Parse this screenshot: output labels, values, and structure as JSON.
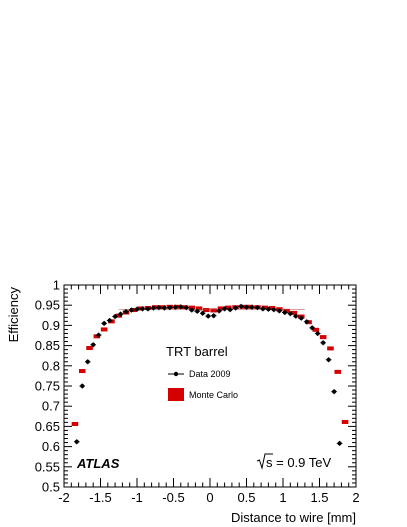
{
  "chart_data": {
    "type": "scatter",
    "xlabel": "Distance to wire  [mm]",
    "ylabel": "Efficiency",
    "xlim": [
      -2,
      2
    ],
    "ylim": [
      0.5,
      1.0
    ],
    "x_ticks": [
      "-2",
      "-1.5",
      "-1",
      "-0.5",
      "0",
      "0.5",
      "1",
      "1.5",
      "2"
    ],
    "y_ticks": [
      "0.5",
      "0.55",
      "0.6",
      "0.65",
      "0.7",
      "0.75",
      "0.8",
      "0.85",
      "0.9",
      "0.95",
      "1"
    ],
    "legend_title": "TRT barrel",
    "experiment_label": "ATLAS",
    "energy_label": "s = 0.9 TeV",
    "colors": {
      "data": "#000000",
      "mc": "#d40000"
    },
    "series": [
      {
        "name": "Data 2009",
        "style": "points-with-errors",
        "points": [
          {
            "x": -1.825,
            "y": 0.612
          },
          {
            "x": -1.75,
            "y": 0.75
          },
          {
            "x": -1.675,
            "y": 0.81
          },
          {
            "x": -1.6,
            "y": 0.852
          },
          {
            "x": -1.525,
            "y": 0.876
          },
          {
            "x": -1.45,
            "y": 0.905
          },
          {
            "x": -1.375,
            "y": 0.912
          },
          {
            "x": -1.3,
            "y": 0.922
          },
          {
            "x": -1.225,
            "y": 0.928
          },
          {
            "x": -1.15,
            "y": 0.934
          },
          {
            "x": -1.075,
            "y": 0.938
          },
          {
            "x": -1.0,
            "y": 0.94
          },
          {
            "x": -0.925,
            "y": 0.941
          },
          {
            "x": -0.85,
            "y": 0.941
          },
          {
            "x": -0.775,
            "y": 0.943
          },
          {
            "x": -0.7,
            "y": 0.944
          },
          {
            "x": -0.625,
            "y": 0.943
          },
          {
            "x": -0.55,
            "y": 0.944
          },
          {
            "x": -0.475,
            "y": 0.945
          },
          {
            "x": -0.4,
            "y": 0.946
          },
          {
            "x": -0.325,
            "y": 0.944
          },
          {
            "x": -0.25,
            "y": 0.938
          },
          {
            "x": -0.175,
            "y": 0.935
          },
          {
            "x": -0.1,
            "y": 0.93
          },
          {
            "x": -0.025,
            "y": 0.923
          },
          {
            "x": 0.05,
            "y": 0.924
          },
          {
            "x": 0.125,
            "y": 0.936
          },
          {
            "x": 0.2,
            "y": 0.941
          },
          {
            "x": 0.275,
            "y": 0.939
          },
          {
            "x": 0.35,
            "y": 0.943
          },
          {
            "x": 0.425,
            "y": 0.947
          },
          {
            "x": 0.5,
            "y": 0.945
          },
          {
            "x": 0.575,
            "y": 0.945
          },
          {
            "x": 0.65,
            "y": 0.944
          },
          {
            "x": 0.725,
            "y": 0.941
          },
          {
            "x": 0.8,
            "y": 0.94
          },
          {
            "x": 0.875,
            "y": 0.939
          },
          {
            "x": 0.95,
            "y": 0.936
          },
          {
            "x": 1.025,
            "y": 0.932
          },
          {
            "x": 1.1,
            "y": 0.929
          },
          {
            "x": 1.175,
            "y": 0.923
          },
          {
            "x": 1.25,
            "y": 0.918
          },
          {
            "x": 1.325,
            "y": 0.909
          },
          {
            "x": 1.4,
            "y": 0.894
          },
          {
            "x": 1.475,
            "y": 0.88
          },
          {
            "x": 1.55,
            "y": 0.857
          },
          {
            "x": 1.625,
            "y": 0.815
          },
          {
            "x": 1.7,
            "y": 0.736
          },
          {
            "x": 1.775,
            "y": 0.608
          }
        ]
      },
      {
        "name": "Monte Carlo",
        "style": "boxes",
        "points": [
          {
            "x": -1.85,
            "y": 0.656
          },
          {
            "x": -1.75,
            "y": 0.787
          },
          {
            "x": -1.65,
            "y": 0.844
          },
          {
            "x": -1.55,
            "y": 0.873
          },
          {
            "x": -1.45,
            "y": 0.89
          },
          {
            "x": -1.35,
            "y": 0.91
          },
          {
            "x": -1.25,
            "y": 0.924
          },
          {
            "x": -1.15,
            "y": 0.932
          },
          {
            "x": -1.05,
            "y": 0.938
          },
          {
            "x": -0.95,
            "y": 0.942
          },
          {
            "x": -0.85,
            "y": 0.943
          },
          {
            "x": -0.75,
            "y": 0.945
          },
          {
            "x": -0.65,
            "y": 0.945
          },
          {
            "x": -0.55,
            "y": 0.946
          },
          {
            "x": -0.45,
            "y": 0.946
          },
          {
            "x": -0.35,
            "y": 0.945
          },
          {
            "x": -0.25,
            "y": 0.944
          },
          {
            "x": -0.15,
            "y": 0.942
          },
          {
            "x": -0.05,
            "y": 0.938
          },
          {
            "x": 0.05,
            "y": 0.937
          },
          {
            "x": 0.15,
            "y": 0.942
          },
          {
            "x": 0.25,
            "y": 0.944
          },
          {
            "x": 0.35,
            "y": 0.945
          },
          {
            "x": 0.45,
            "y": 0.946
          },
          {
            "x": 0.55,
            "y": 0.946
          },
          {
            "x": 0.65,
            "y": 0.945
          },
          {
            "x": 0.75,
            "y": 0.944
          },
          {
            "x": 0.85,
            "y": 0.943
          },
          {
            "x": 0.95,
            "y": 0.94
          },
          {
            "x": 1.05,
            "y": 0.936
          },
          {
            "x": 1.15,
            "y": 0.931
          },
          {
            "x": 1.25,
            "y": 0.922
          },
          {
            "x": 1.35,
            "y": 0.908
          },
          {
            "x": 1.45,
            "y": 0.889
          },
          {
            "x": 1.55,
            "y": 0.871
          },
          {
            "x": 1.65,
            "y": 0.843
          },
          {
            "x": 1.75,
            "y": 0.785
          },
          {
            "x": 1.85,
            "y": 0.661
          }
        ]
      }
    ]
  }
}
